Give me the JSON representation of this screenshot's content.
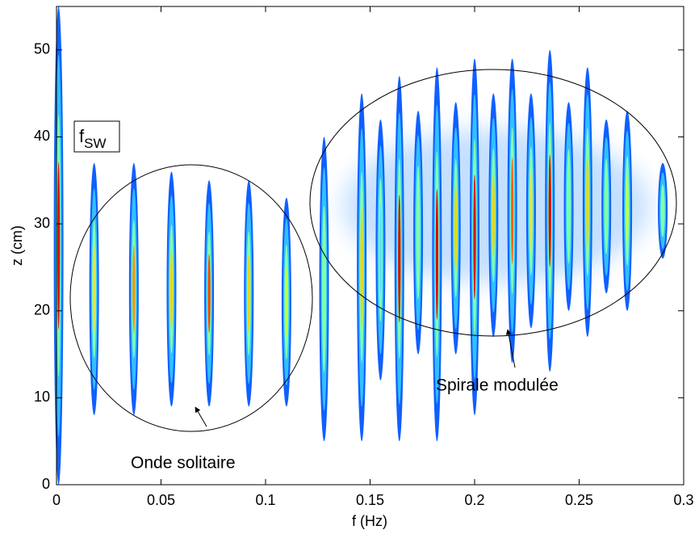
{
  "chart_data": {
    "type": "spectrogram",
    "xlabel": "f (Hz)",
    "ylabel": "z (cm)",
    "xlim": [
      0,
      0.3
    ],
    "ylim": [
      0,
      55
    ],
    "xticks": [
      0,
      0.05,
      0.1,
      0.15,
      0.2,
      0.25,
      0.3
    ],
    "yticks": [
      0,
      10,
      20,
      30,
      40,
      50
    ],
    "stripes": {
      "f": [
        0.001,
        0.018,
        0.037,
        0.055,
        0.073,
        0.092,
        0.11,
        0.128,
        0.146,
        0.155,
        0.164,
        0.173,
        0.182,
        0.191,
        0.2,
        0.209,
        0.218,
        0.227,
        0.236,
        0.245,
        0.254,
        0.263,
        0.273,
        0.29
      ],
      "zmin": [
        0,
        8,
        8,
        9,
        9,
        9,
        9,
        5,
        5,
        12,
        5,
        15,
        5,
        15,
        8,
        17,
        14,
        18,
        13,
        20,
        17,
        22,
        20,
        26
      ],
      "zmax": [
        55,
        37,
        37,
        36,
        35,
        35,
        33,
        40,
        45,
        42,
        47,
        43,
        48,
        44,
        49,
        45,
        49,
        45,
        50,
        44,
        48,
        42,
        43,
        37
      ],
      "peak_colors": [
        "#e00000",
        "#f0e040",
        "#ff9000",
        "#ffd000",
        "#ff4000",
        "#ffd000",
        "#c0ff40",
        "#80ffa0",
        "#ffd000",
        "#60e0ff",
        "#e00000",
        "#80ffa0",
        "#e00000",
        "#ffd000",
        "#e00000",
        "#ffd000",
        "#ff6000",
        "#f0e040",
        "#e00000",
        "#80ffa0",
        "#ffd000",
        "#80ffa0",
        "#c0ff40",
        "#80ffa0"
      ]
    },
    "annotations": {
      "fsw": {
        "main": "f",
        "sub": "SW"
      },
      "left": "Onde solitaire",
      "right": "Spirale modulée"
    }
  }
}
